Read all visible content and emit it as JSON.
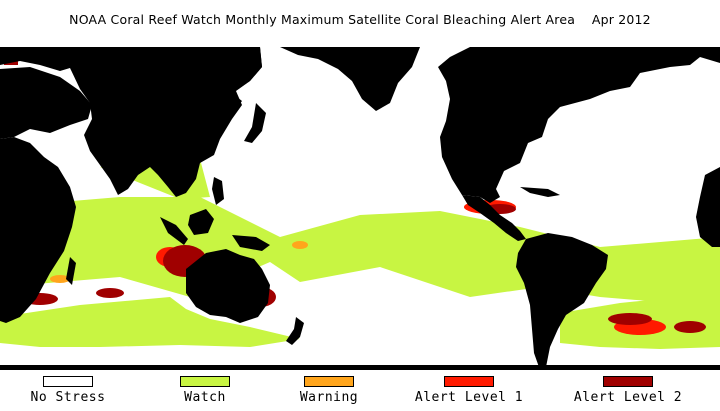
{
  "title": {
    "main": "NOAA Coral Reef Watch Monthly Maximum Satellite Coral Bleaching Alert Area",
    "date": "Apr 2012"
  },
  "map": {
    "land_color": "#000000",
    "ocean_color": "#ffffff"
  },
  "legend": {
    "items": [
      {
        "label": "No Stress",
        "color": "#ffffff"
      },
      {
        "label": "Watch",
        "color": "#c8f542"
      },
      {
        "label": "Warning",
        "color": "#ffa51c"
      },
      {
        "label": "Alert Level 1",
        "color": "#ff1a00"
      },
      {
        "label": "Alert Level 2",
        "color": "#a00000"
      }
    ]
  }
}
